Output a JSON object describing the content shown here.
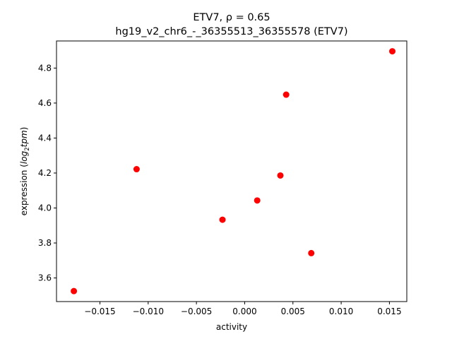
{
  "chart_data": {
    "type": "scatter",
    "title_line1": "ETV7, ρ = 0.65",
    "title_line2": "hg19_v2_chr6_-_36355513_36355578 (ETV7)",
    "xlabel": "activity",
    "ylabel_prefix": "expression (",
    "ylabel_math": "log",
    "ylabel_sub": "2",
    "ylabel_math2": "tpm",
    "ylabel_suffix": ")",
    "xlim": [
      -0.0195,
      0.0168
    ],
    "ylim": [
      3.465,
      4.955
    ],
    "x_ticks": [
      -0.015,
      -0.01,
      -0.005,
      0.0,
      0.005,
      0.01,
      0.015
    ],
    "x_tick_labels": [
      "−0.015",
      "−0.010",
      "−0.005",
      "0.000",
      "0.005",
      "0.010",
      "0.015"
    ],
    "y_ticks": [
      3.6,
      3.8,
      4.0,
      4.2,
      4.4,
      4.6,
      4.8
    ],
    "y_tick_labels": [
      "3.6",
      "3.8",
      "4.0",
      "4.2",
      "4.4",
      "4.6",
      "4.8"
    ],
    "marker_color": "#ff0000",
    "points": [
      {
        "x": -0.0177,
        "y": 3.525
      },
      {
        "x": -0.0112,
        "y": 4.222
      },
      {
        "x": -0.0023,
        "y": 3.933
      },
      {
        "x": 0.0013,
        "y": 4.043
      },
      {
        "x": 0.0037,
        "y": 4.186
      },
      {
        "x": 0.0043,
        "y": 4.648
      },
      {
        "x": 0.0069,
        "y": 3.742
      },
      {
        "x": 0.0153,
        "y": 4.896
      }
    ]
  }
}
